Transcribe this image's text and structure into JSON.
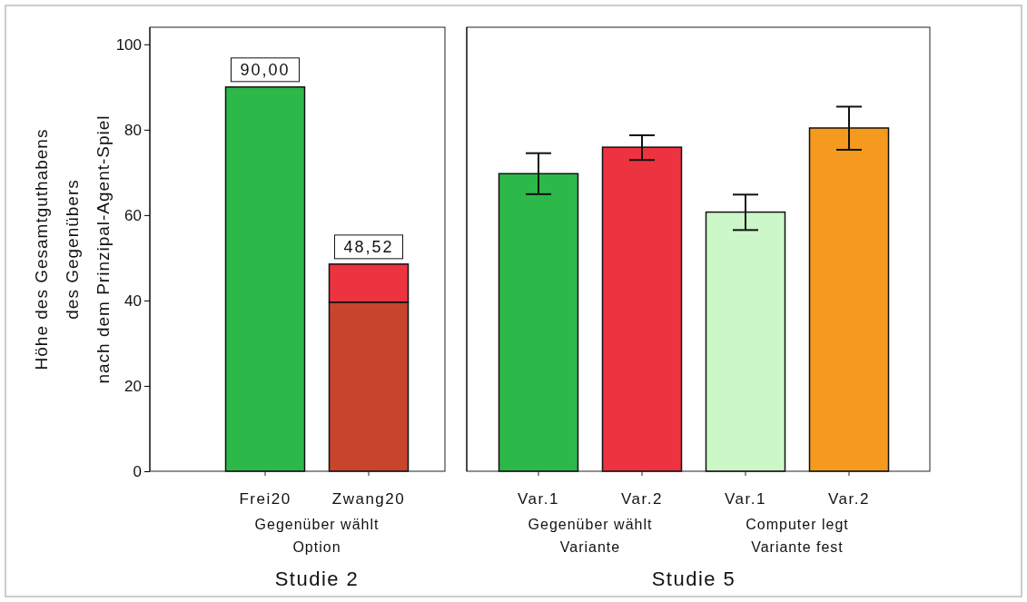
{
  "chart_data": [
    {
      "type": "bar",
      "title": "Studie 2",
      "xlabel": "Gegenüber wählt\nOption",
      "ylabel": "Höhe des Gesamtguthabens\ndes Gegenübers\nnach dem Prinzipal-Agent-Spiel",
      "categories": [
        "Frei20",
        "Zwang20"
      ],
      "stacked": true,
      "series": [
        {
          "colors": [
            "#2db84a",
            "#c8452c"
          ],
          "values": [
            90,
            39.6
          ]
        },
        {
          "color": "#ee3340",
          "values": [
            null,
            8.92
          ]
        }
      ],
      "totals": [
        "90,00",
        "48,52"
      ],
      "ylim": [
        0,
        104
      ],
      "yticks": [
        0,
        20,
        40,
        60,
        80,
        100
      ]
    },
    {
      "type": "bar",
      "title": "Studie 5",
      "categories": [
        "Var.1",
        "Var.2",
        "Var.1",
        "Var.2"
      ],
      "annotations": [
        "Gegenüber wählt\nVariante",
        "Computer legt\nVariante fest"
      ],
      "colors": [
        "#2db84a",
        "#ee3340",
        "#ccf7c8",
        "#f59a1e"
      ],
      "values": [
        69.7,
        75.9,
        60.7,
        80.4
      ],
      "errors": [
        [
          64.9,
          74.5
        ],
        [
          72.9,
          78.7
        ],
        [
          56.5,
          64.8
        ],
        [
          75.3,
          85.4
        ]
      ],
      "ylim": [
        0,
        104
      ],
      "yticks": [
        0,
        20,
        40,
        60,
        80,
        100
      ],
      "tick_labels": "x"
    }
  ]
}
